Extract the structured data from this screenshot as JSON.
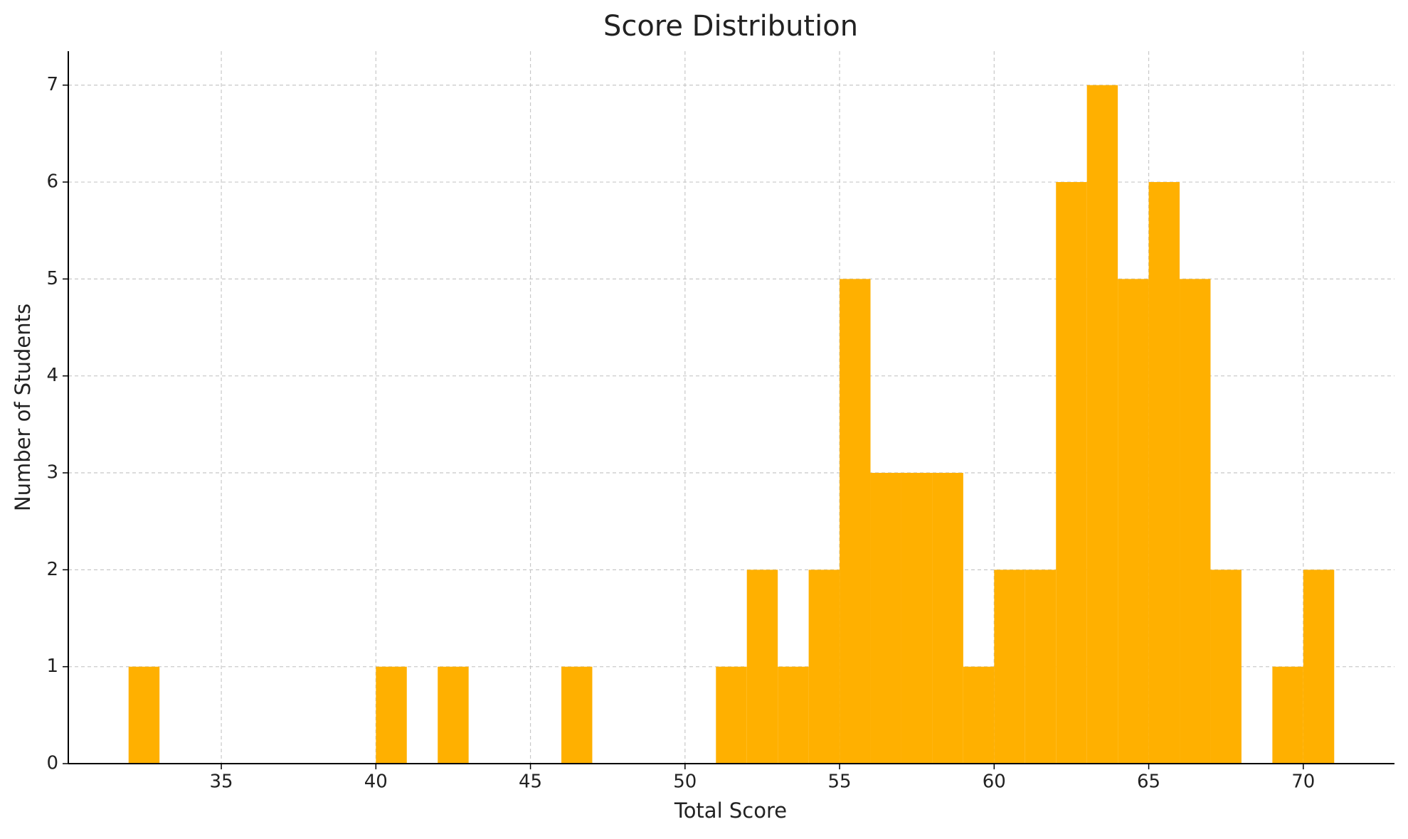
{
  "chart_data": {
    "type": "histogram",
    "title": "Score Distribution",
    "x_label": "Total Score",
    "y_label": "Number of Students",
    "bins": [
      32,
      33,
      34,
      35,
      36,
      37,
      38,
      39,
      40,
      41,
      42,
      43,
      44,
      45,
      46,
      47,
      48,
      49,
      50,
      51,
      52,
      53,
      54,
      55,
      56,
      57,
      58,
      59,
      60,
      61,
      62,
      63,
      64,
      65,
      66,
      67,
      68,
      69,
      70,
      71
    ],
    "counts": [
      1,
      0,
      0,
      0,
      0,
      0,
      0,
      0,
      1,
      0,
      1,
      0,
      0,
      0,
      1,
      0,
      0,
      0,
      0,
      1,
      2,
      1,
      2,
      5,
      3,
      3,
      3,
      1,
      2,
      2,
      6,
      7,
      5,
      6,
      5,
      2,
      0,
      1,
      2
    ],
    "color": "#ffb000",
    "xlim": [
      30.05,
      72.95
    ],
    "xticks": [
      35,
      40,
      45,
      50,
      55,
      60,
      65,
      70
    ],
    "ylim": [
      0,
      7.35
    ],
    "yticks": [
      0,
      1,
      2,
      3,
      4,
      5,
      6,
      7
    ],
    "grid": true
  }
}
